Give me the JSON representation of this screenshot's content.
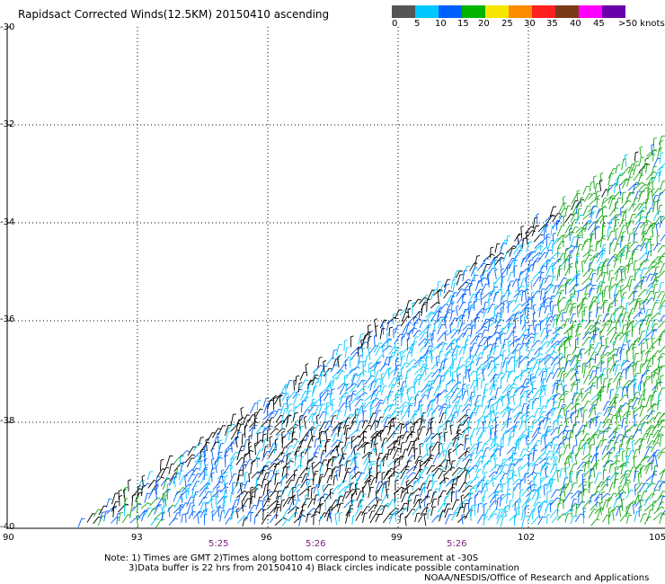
{
  "title": "Rapidsact Corrected Winds(12.5KM) 20150410 ascending",
  "colorbar": {
    "colors": [
      "#555555",
      "#00c8ff",
      "#0060ff",
      "#00b400",
      "#f5e600",
      "#ff8c00",
      "#ff2020",
      "#7a3a1a",
      "#ff00ff",
      "#6a00aa"
    ],
    "labels": [
      "0",
      "5",
      "10",
      "15",
      "20",
      "25",
      "30",
      "35",
      "40",
      "45",
      ">50 knots"
    ]
  },
  "lat_labels": [
    "-30",
    "-32",
    "-34",
    "-36",
    "-38",
    "-40"
  ],
  "lon_labels": [
    "90",
    "93",
    "96",
    "99",
    "102",
    "105"
  ],
  "times": [
    "5:25",
    "5:26",
    "5:26"
  ],
  "notes": {
    "line1": "Note: 1) Times are GMT 2)Times along bottom correspond to measurement at -30S",
    "line2": "3)Data buffer is 22 hrs from 20150410 4) Black circles indicate possible contamination",
    "credit": "NOAA/NESDIS/Office of Research and Applications"
  }
}
